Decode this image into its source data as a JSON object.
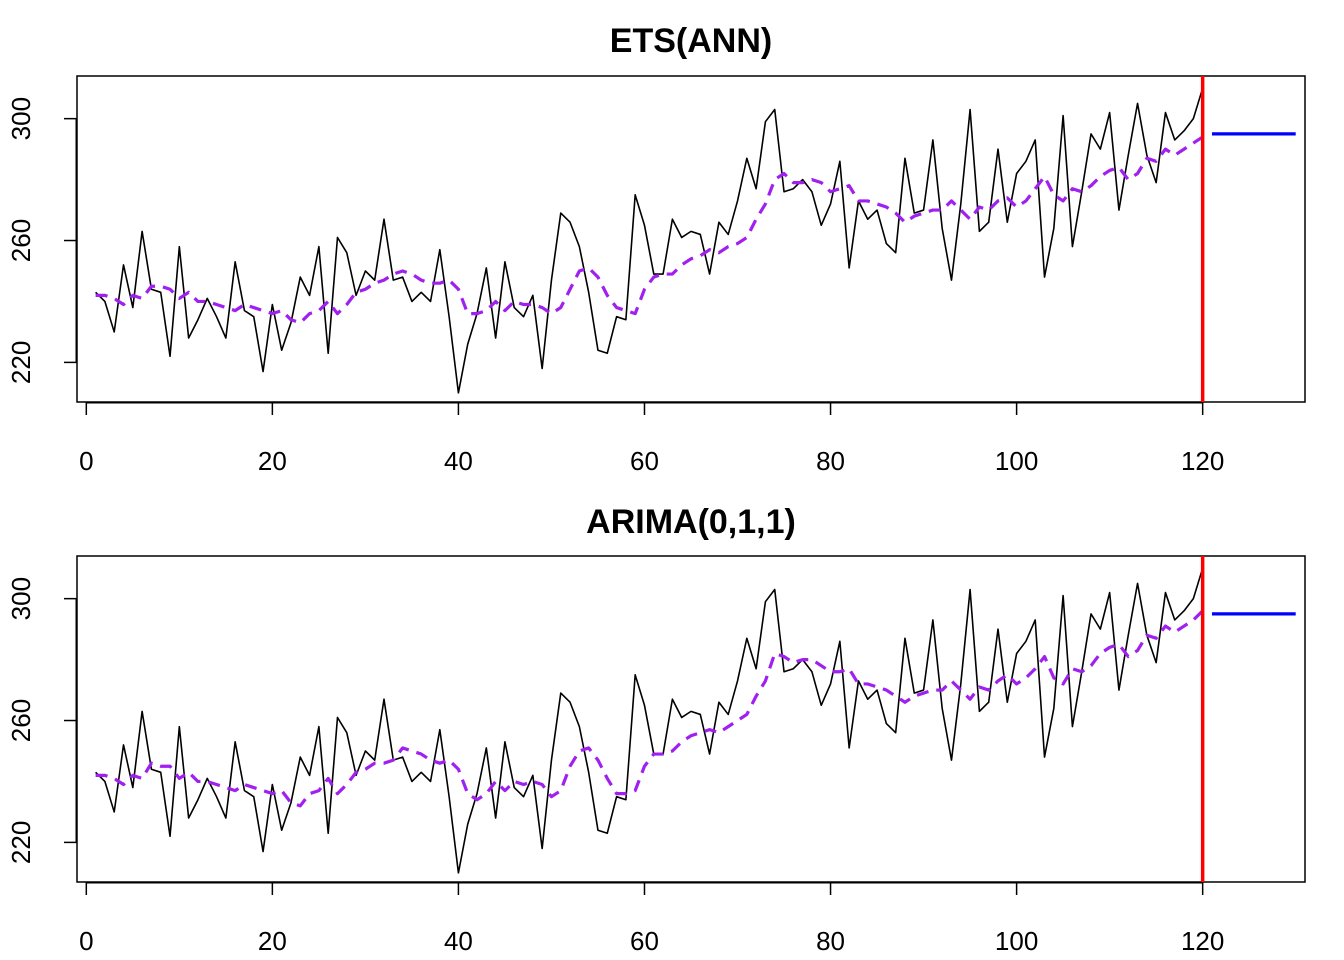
{
  "chart_data": [
    {
      "type": "line",
      "title": "ETS(ANN)",
      "xlabel": "",
      "ylabel": "",
      "xlim": [
        -1,
        131
      ],
      "ylim": [
        207,
        314
      ],
      "xticks": [
        0,
        20,
        40,
        60,
        80,
        100,
        120
      ],
      "yticks": [
        220,
        260,
        300
      ],
      "grid": false,
      "legend": "none",
      "colors": {
        "actual": "#000000",
        "fitted": "#A020F0",
        "forecast": "#0000FF",
        "holdout_line": "#FF0000"
      },
      "holdout_x": 120,
      "series": [
        {
          "role": "actual",
          "x_start": 1,
          "values": [
            243,
            240,
            230,
            252,
            238,
            263,
            244,
            243,
            222,
            258,
            228,
            234,
            241,
            235,
            228,
            253,
            237,
            235,
            217,
            239,
            224,
            233,
            248,
            242,
            258,
            223,
            261,
            256,
            242,
            250,
            247,
            267,
            247,
            248,
            240,
            243,
            240,
            257,
            235,
            210,
            226,
            236,
            251,
            228,
            253,
            238,
            235,
            242,
            218,
            247,
            269,
            266,
            258,
            243,
            224,
            223,
            235,
            234,
            275,
            265,
            249,
            249,
            267,
            261,
            263,
            262,
            249,
            266,
            262,
            273,
            287,
            277,
            299,
            303,
            276,
            277,
            280,
            276,
            265,
            272,
            286,
            251,
            273,
            267,
            270,
            259,
            256,
            287,
            269,
            270,
            293,
            264,
            247,
            272,
            303,
            263,
            266,
            290,
            266,
            282,
            286,
            293,
            248,
            264,
            301,
            258,
            276,
            295,
            290,
            302,
            270,
            288,
            305,
            288,
            279,
            302,
            293,
            296,
            300,
            310
          ],
          "end": 291
        },
        {
          "role": "fitted",
          "x_start": 1,
          "values": [
            242,
            242,
            241,
            239,
            242,
            241,
            245,
            245,
            244,
            241,
            243,
            240,
            240,
            239,
            238,
            237,
            239,
            238,
            237,
            236,
            237,
            234,
            233,
            236,
            237,
            240,
            236,
            239,
            243,
            244,
            246,
            247,
            249,
            250,
            249,
            247,
            246,
            246,
            247,
            244,
            236,
            236,
            237,
            240,
            237,
            240,
            239,
            239,
            238,
            236,
            238,
            244,
            250,
            251,
            248,
            242,
            238,
            237,
            236,
            244,
            248,
            249,
            249,
            252,
            254,
            255,
            257,
            256,
            258,
            259,
            261,
            267,
            272,
            280,
            282,
            279,
            279,
            280,
            279,
            276,
            277,
            278,
            273,
            273,
            272,
            271,
            269,
            266,
            268,
            269,
            270,
            270,
            273,
            270,
            267,
            271,
            270,
            273,
            274,
            271,
            273,
            277,
            281,
            275,
            273,
            277,
            276,
            278,
            281,
            283,
            284,
            280,
            282,
            287,
            286,
            290,
            288,
            290,
            292,
            294
          ]
        },
        {
          "role": "forecast",
          "x": [
            121,
            130
          ],
          "values": [
            295,
            295
          ]
        }
      ]
    },
    {
      "type": "line",
      "title": "ARIMA(0,1,1)",
      "xlabel": "",
      "ylabel": "",
      "xlim": [
        -1,
        131
      ],
      "ylim": [
        207,
        314
      ],
      "xticks": [
        0,
        20,
        40,
        60,
        80,
        100,
        120
      ],
      "yticks": [
        220,
        260,
        300
      ],
      "grid": false,
      "legend": "none",
      "colors": {
        "actual": "#000000",
        "fitted": "#A020F0",
        "forecast": "#0000FF",
        "holdout_line": "#FF0000"
      },
      "holdout_x": 120,
      "series": [
        {
          "role": "actual",
          "x_start": 1,
          "values": [
            243,
            240,
            230,
            252,
            238,
            263,
            244,
            243,
            222,
            258,
            228,
            234,
            241,
            235,
            228,
            253,
            237,
            235,
            217,
            239,
            224,
            233,
            248,
            242,
            258,
            223,
            261,
            256,
            242,
            250,
            247,
            267,
            247,
            248,
            240,
            243,
            240,
            257,
            235,
            210,
            226,
            236,
            251,
            228,
            253,
            238,
            235,
            242,
            218,
            247,
            269,
            266,
            258,
            243,
            224,
            223,
            235,
            234,
            275,
            265,
            249,
            249,
            267,
            261,
            263,
            262,
            249,
            266,
            262,
            273,
            287,
            277,
            299,
            303,
            276,
            277,
            280,
            276,
            265,
            272,
            286,
            251,
            273,
            267,
            270,
            259,
            256,
            287,
            269,
            270,
            293,
            264,
            247,
            272,
            303,
            263,
            266,
            290,
            266,
            282,
            286,
            293,
            248,
            264,
            301,
            258,
            276,
            295,
            290,
            302,
            270,
            288,
            305,
            288,
            279,
            302,
            293,
            296,
            300,
            310
          ],
          "end": 291
        },
        {
          "role": "fitted",
          "x_start": 1,
          "values": [
            242,
            242,
            241,
            239,
            242,
            241,
            246,
            245,
            245,
            241,
            243,
            240,
            240,
            239,
            238,
            237,
            239,
            238,
            237,
            236,
            237,
            233,
            232,
            236,
            237,
            241,
            236,
            239,
            243,
            244,
            246,
            246,
            247,
            251,
            250,
            249,
            247,
            246,
            247,
            244,
            236,
            234,
            236,
            240,
            237,
            240,
            239,
            240,
            239,
            235,
            237,
            245,
            250,
            251,
            247,
            241,
            236,
            236,
            237,
            245,
            249,
            249,
            250,
            253,
            255,
            256,
            257,
            256,
            258,
            260,
            262,
            268,
            273,
            282,
            281,
            279,
            280,
            280,
            278,
            276,
            276,
            277,
            272,
            272,
            271,
            270,
            268,
            266,
            268,
            269,
            270,
            270,
            273,
            270,
            267,
            271,
            270,
            273,
            275,
            272,
            274,
            277,
            281,
            274,
            272,
            277,
            276,
            278,
            282,
            284,
            285,
            281,
            283,
            288,
            287,
            291,
            289,
            291,
            293,
            296
          ]
        },
        {
          "role": "forecast",
          "x": [
            121,
            130
          ],
          "values": [
            295,
            295
          ]
        }
      ]
    }
  ]
}
